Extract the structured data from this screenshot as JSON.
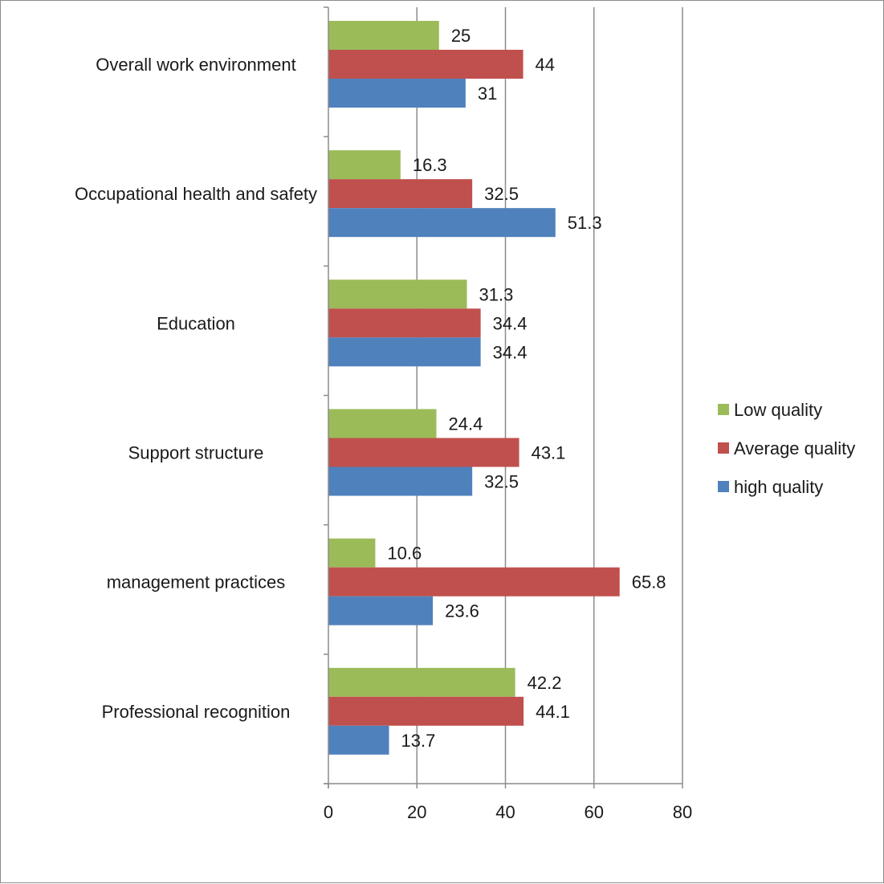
{
  "chart_data": {
    "type": "bar",
    "orientation": "horizontal",
    "categories": [
      "Overall work environment",
      "Occupational health and safety",
      "Education",
      "Support structure",
      "management practices",
      "Professional recognition"
    ],
    "series": [
      {
        "name": "Low quality",
        "color": "#9bbb59",
        "values": [
          25,
          16.3,
          31.3,
          24.4,
          10.6,
          42.2
        ]
      },
      {
        "name": "Average quality",
        "color": "#c0504d",
        "values": [
          44,
          32.5,
          34.4,
          43.1,
          65.8,
          44.1
        ]
      },
      {
        "name": "high quality",
        "color": "#4f81bd",
        "values": [
          31,
          51.3,
          34.4,
          32.5,
          23.6,
          13.7
        ]
      }
    ],
    "data_labels": [
      [
        "25",
        "16.3",
        "31.3",
        "24.4",
        "10.6",
        "42.2"
      ],
      [
        "44",
        "32.5",
        "34.4",
        "43.1",
        "65.8",
        "44.1"
      ],
      [
        "31",
        "51.3",
        "34.4",
        "32.5",
        "23.6",
        "13.7"
      ]
    ],
    "xlim": [
      0,
      80
    ],
    "xticks": [
      0,
      20,
      40,
      60,
      80
    ],
    "xtick_labels": [
      "0",
      "20",
      "40",
      "60",
      "80"
    ],
    "title": "",
    "xlabel": "",
    "ylabel": "",
    "grid": "vertical",
    "legend_position": "right"
  }
}
